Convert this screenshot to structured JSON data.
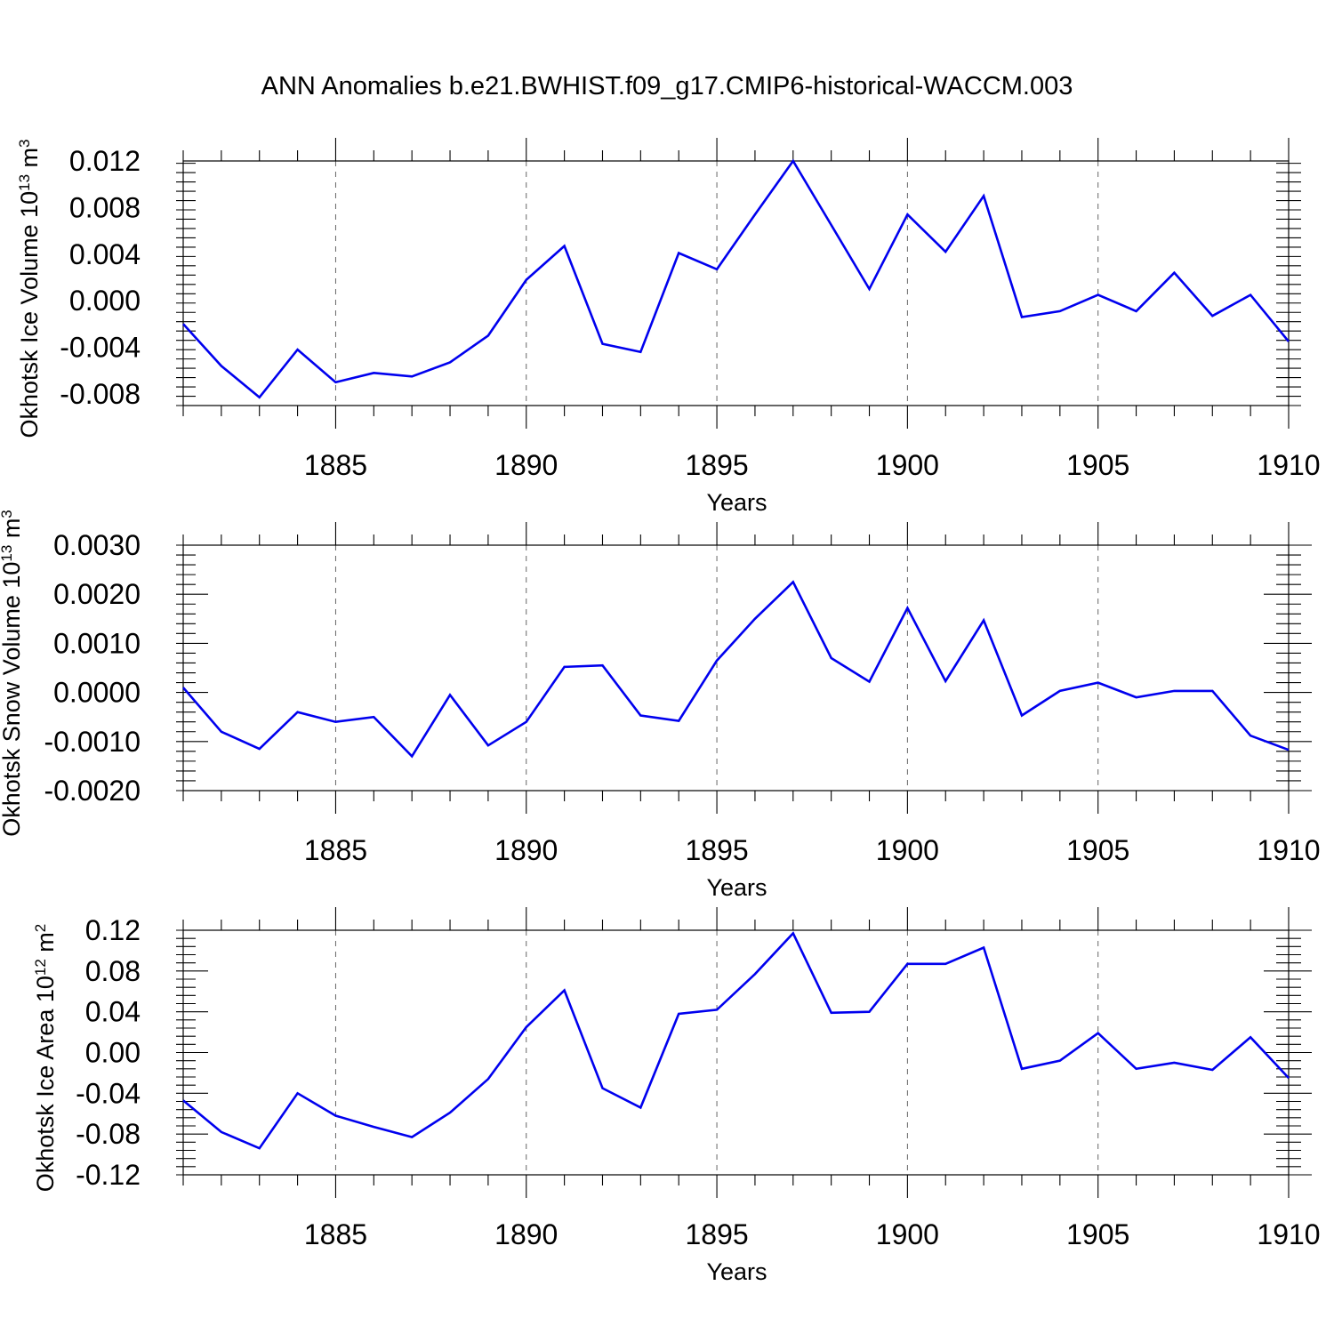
{
  "title": "ANN Anomalies b.e21.BWHIST.f09_g17.CMIP6-historical-WACCM.003",
  "colors": {
    "line": "#0000ee",
    "axes": "#000000",
    "grid": "#666666"
  },
  "chart_data": [
    {
      "type": "line",
      "title": "",
      "xlabel": "Years",
      "ylabel": {
        "text": "Okhotsk Ice Volume 10",
        "sup": "13",
        "unit": " m",
        "unit_sup": "3"
      },
      "x": [
        1881,
        1882,
        1883,
        1884,
        1885,
        1886,
        1887,
        1888,
        1889,
        1890,
        1891,
        1892,
        1893,
        1894,
        1895,
        1896,
        1897,
        1898,
        1899,
        1900,
        1901,
        1902,
        1903,
        1904,
        1905,
        1906,
        1907,
        1908,
        1909,
        1910
      ],
      "series": [
        {
          "values": [
            -0.002,
            -0.0056,
            -0.0083,
            -0.0042,
            -0.007,
            -0.0062,
            -0.0065,
            -0.0053,
            -0.003,
            0.0018,
            0.0047,
            -0.0037,
            -0.0044,
            0.0041,
            0.0027,
            0.0074,
            0.012,
            0.0065,
            0.001,
            0.0074,
            0.0042,
            0.009,
            -0.0014,
            -0.0009,
            0.0005,
            -0.0009,
            0.0024,
            -0.0013,
            0.0005,
            -0.0035
          ]
        }
      ],
      "xlim": [
        1881,
        1910
      ],
      "ylim": [
        -0.009,
        0.012
      ],
      "yticks": [
        -0.008,
        -0.004,
        0.0,
        0.004,
        0.008,
        0.012
      ],
      "ytick_labels": [
        "-0.008",
        "-0.004",
        "0.000",
        "0.004",
        "0.008",
        "0.012"
      ],
      "xticks": [
        1885,
        1890,
        1895,
        1900,
        1905,
        1910
      ],
      "xtick_labels": [
        "1885",
        "1890",
        "1895",
        "1900",
        "1905",
        "1910"
      ],
      "grid": "vertical-dashed"
    },
    {
      "type": "line",
      "title": "",
      "xlabel": "Years",
      "ylabel": {
        "text": "Okhotsk Snow Volume 10",
        "sup": "13",
        "unit": " m",
        "unit_sup": "3"
      },
      "x": [
        1881,
        1882,
        1883,
        1884,
        1885,
        1886,
        1887,
        1888,
        1889,
        1890,
        1891,
        1892,
        1893,
        1894,
        1895,
        1896,
        1897,
        1898,
        1899,
        1900,
        1901,
        1902,
        1903,
        1904,
        1905,
        1906,
        1907,
        1908,
        1909,
        1910
      ],
      "series": [
        {
          "values": [
            0.0001,
            -0.0008,
            -0.00115,
            -0.0004,
            -0.0006,
            -0.0005,
            -0.0013,
            -5e-05,
            -0.00108,
            -0.0006,
            0.00052,
            0.00055,
            -0.00047,
            -0.00058,
            0.00065,
            0.0015,
            0.00225,
            0.0007,
            0.00022,
            0.00172,
            0.00023,
            0.00147,
            -0.00047,
            3e-05,
            0.0002,
            -0.0001,
            3e-05,
            3e-05,
            -0.00088,
            -0.00117
          ]
        }
      ],
      "xlim": [
        1881,
        1910
      ],
      "ylim": [
        -0.002,
        0.003
      ],
      "yticks": [
        -0.002,
        -0.001,
        0.0,
        0.001,
        0.002,
        0.003
      ],
      "ytick_labels": [
        "-0.0020",
        "-0.0010",
        "0.0000",
        "0.0010",
        "0.0020",
        "0.0030"
      ],
      "xticks": [
        1885,
        1890,
        1895,
        1900,
        1905,
        1910
      ],
      "xtick_labels": [
        "1885",
        "1890",
        "1895",
        "1900",
        "1905",
        "1910"
      ],
      "grid": "vertical-dashed"
    },
    {
      "type": "line",
      "title": "",
      "xlabel": "Years",
      "ylabel": {
        "text": "Okhotsk Ice Area 10",
        "sup": "12",
        "unit": " m",
        "unit_sup": "2"
      },
      "x": [
        1881,
        1882,
        1883,
        1884,
        1885,
        1886,
        1887,
        1888,
        1889,
        1890,
        1891,
        1892,
        1893,
        1894,
        1895,
        1896,
        1897,
        1898,
        1899,
        1900,
        1901,
        1902,
        1903,
        1904,
        1905,
        1906,
        1907,
        1908,
        1909,
        1910
      ],
      "series": [
        {
          "values": [
            -0.047,
            -0.078,
            -0.094,
            -0.04,
            -0.062,
            -0.073,
            -0.083,
            -0.059,
            -0.026,
            0.025,
            0.061,
            -0.035,
            -0.054,
            0.038,
            0.042,
            0.077,
            0.117,
            0.039,
            0.04,
            0.087,
            0.087,
            0.103,
            -0.016,
            -0.008,
            0.019,
            -0.016,
            -0.01,
            -0.017,
            0.015,
            -0.025
          ]
        }
      ],
      "xlim": [
        1881,
        1910
      ],
      "ylim": [
        -0.12,
        0.12
      ],
      "yticks": [
        -0.12,
        -0.08,
        -0.04,
        0.0,
        0.04,
        0.08,
        0.12
      ],
      "ytick_labels": [
        "-0.12",
        "-0.08",
        "-0.04",
        "0.00",
        "0.04",
        "0.08",
        "0.12"
      ],
      "xticks": [
        1885,
        1890,
        1895,
        1900,
        1905,
        1910
      ],
      "xtick_labels": [
        "1885",
        "1890",
        "1895",
        "1900",
        "1905",
        "1910"
      ],
      "grid": "vertical-dashed"
    }
  ]
}
